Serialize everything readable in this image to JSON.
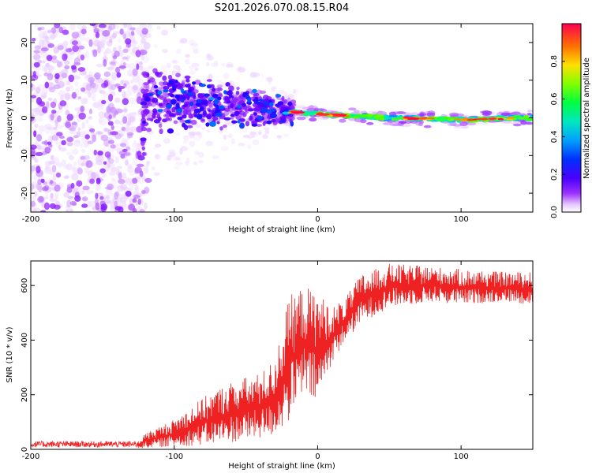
{
  "title": "S201.2026.070.08.15.R04",
  "chart_data": [
    {
      "type": "heatmap",
      "name": "spectrogram",
      "xlabel": "Height of straight line (km)",
      "ylabel": "Frequency (Hz)",
      "xlim": [
        -200,
        150
      ],
      "ylim": [
        -25,
        25
      ],
      "xticks": [
        -200,
        -100,
        0,
        100
      ],
      "yticks": [
        -20,
        -10,
        0,
        10,
        20
      ],
      "colorbar": {
        "label": "Normalized spectral amplitude",
        "range": [
          0,
          1
        ],
        "ticks": [
          0.0,
          0.2,
          0.4,
          0.6,
          0.8
        ],
        "colors": [
          "#ffffff",
          "#e6c8ff",
          "#9b30ff",
          "#6a00ff",
          "#2400ff",
          "#0060ff",
          "#00c8ff",
          "#00ff80",
          "#40ff00",
          "#c8ff00",
          "#ffd000",
          "#ff6a00",
          "#ff0050"
        ]
      },
      "regions": [
        {
          "x_from": -200,
          "x_to": -120,
          "description_level": 0.2,
          "freq_spread": 25
        },
        {
          "x_from": -120,
          "x_to": -20,
          "description_level": 0.35,
          "freq_spread": 8
        },
        {
          "x_from": -20,
          "x_to": 150,
          "description_level": 0.9,
          "freq_spread": 1
        }
      ],
      "ridge": [
        {
          "x": -120,
          "y": 5
        },
        {
          "x": -90,
          "y": 4
        },
        {
          "x": -60,
          "y": 3
        },
        {
          "x": -30,
          "y": 2
        },
        {
          "x": 0,
          "y": 1
        },
        {
          "x": 50,
          "y": 0
        },
        {
          "x": 100,
          "y": -0.5
        },
        {
          "x": 150,
          "y": 0
        }
      ]
    },
    {
      "type": "line",
      "name": "snr",
      "xlabel": "Height of straight line (km)",
      "ylabel": "SNR (10 * v/v)",
      "xlim": [
        -200,
        150
      ],
      "ylim": [
        0,
        690
      ],
      "xticks": [
        -200,
        -100,
        0,
        100
      ],
      "yticks": [
        0,
        200,
        400,
        600
      ],
      "color": "#ee2222",
      "envelope": [
        {
          "x": -200,
          "lo": 2,
          "hi": 30
        },
        {
          "x": -125,
          "lo": 2,
          "hi": 30
        },
        {
          "x": -120,
          "lo": 5,
          "hi": 60
        },
        {
          "x": -100,
          "lo": 10,
          "hi": 110
        },
        {
          "x": -80,
          "lo": 15,
          "hi": 190
        },
        {
          "x": -60,
          "lo": 25,
          "hi": 250
        },
        {
          "x": -40,
          "lo": 40,
          "hi": 280
        },
        {
          "x": -30,
          "lo": 50,
          "hi": 330
        },
        {
          "x": -20,
          "lo": 100,
          "hi": 560
        },
        {
          "x": -10,
          "lo": 200,
          "hi": 600
        },
        {
          "x": 0,
          "lo": 160,
          "hi": 580
        },
        {
          "x": 10,
          "lo": 320,
          "hi": 520
        },
        {
          "x": 20,
          "lo": 400,
          "hi": 560
        },
        {
          "x": 30,
          "lo": 460,
          "hi": 640
        },
        {
          "x": 50,
          "lo": 520,
          "hi": 680
        },
        {
          "x": 80,
          "lo": 540,
          "hi": 670
        },
        {
          "x": 100,
          "lo": 530,
          "hi": 660
        },
        {
          "x": 130,
          "lo": 540,
          "hi": 650
        },
        {
          "x": 150,
          "lo": 530,
          "hi": 650
        }
      ]
    }
  ]
}
